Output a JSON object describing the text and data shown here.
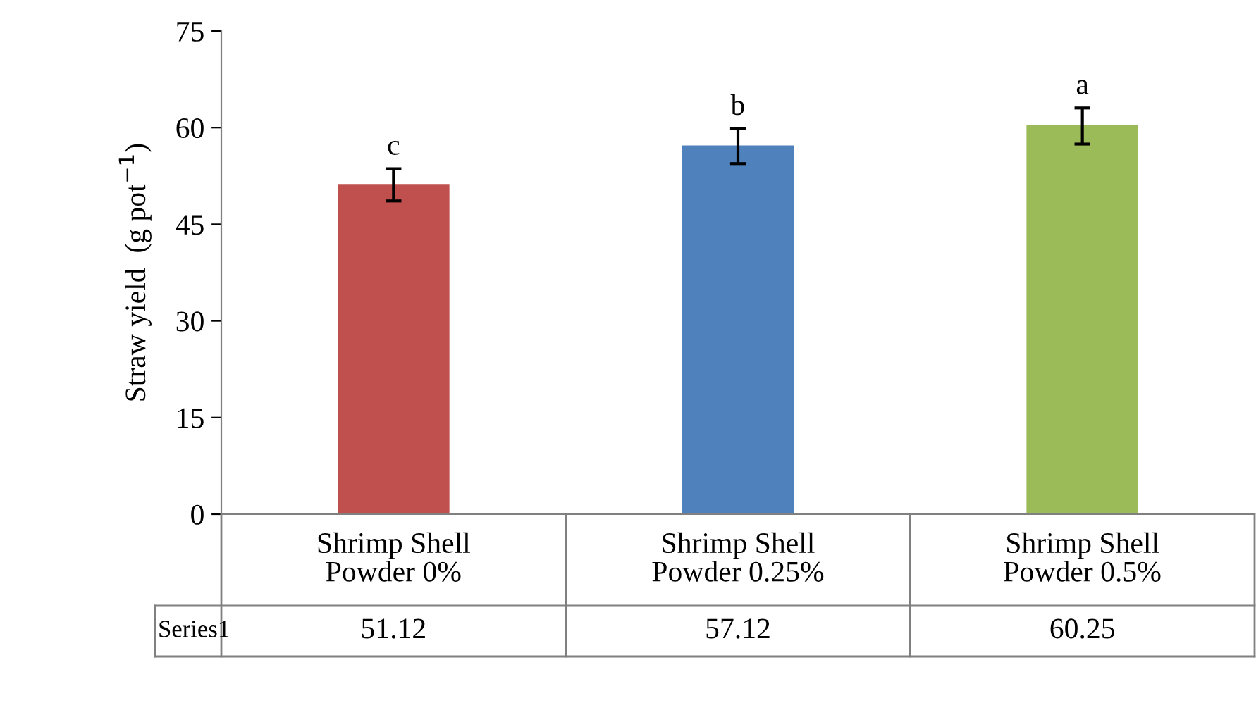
{
  "chart_data": {
    "type": "bar",
    "ylabel": "Straw yield  (g pot$^{−1}$)",
    "categories": [
      "Shrimp Shell\nPowder 0%",
      "Shrimp Shell\nPowder 0.25%",
      "Shrimp Shell\nPowder 0.5%"
    ],
    "series": [
      {
        "name": "Series1",
        "colors": [
          "#c0504d",
          "#4f81bd",
          "#9bbb59"
        ],
        "values": [
          51.12,
          57.12,
          60.25
        ],
        "errors": [
          2.5,
          2.7,
          2.8
        ]
      }
    ],
    "ylim": [
      0,
      75
    ],
    "yticks": [
      0,
      15,
      30,
      45,
      60,
      75
    ],
    "data_labels": true,
    "annotations": [
      "c",
      "b",
      "a"
    ]
  }
}
